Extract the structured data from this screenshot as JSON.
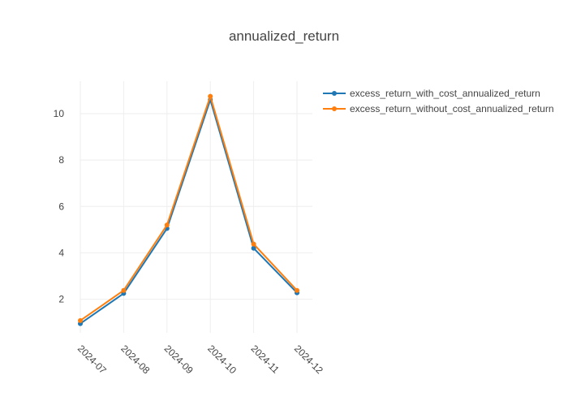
{
  "chart_data": {
    "type": "line",
    "title": "annualized_return",
    "x": [
      "2024-07",
      "2024-08",
      "2024-09",
      "2024-10",
      "2024-11",
      "2024-12"
    ],
    "series": [
      {
        "name": "excess_return_with_cost_annualized_return",
        "color": "#1f77b4",
        "values": [
          0.95,
          2.25,
          5.05,
          10.6,
          4.2,
          2.28
        ]
      },
      {
        "name": "excess_return_without_cost_annualized_return",
        "color": "#ff7f0e",
        "values": [
          1.08,
          2.38,
          5.2,
          10.75,
          4.38,
          2.38
        ]
      }
    ],
    "ylim": [
      0.55,
      11.4
    ],
    "yticks": [
      2,
      4,
      6,
      8,
      10
    ],
    "grid": true,
    "legend": "top-right"
  }
}
